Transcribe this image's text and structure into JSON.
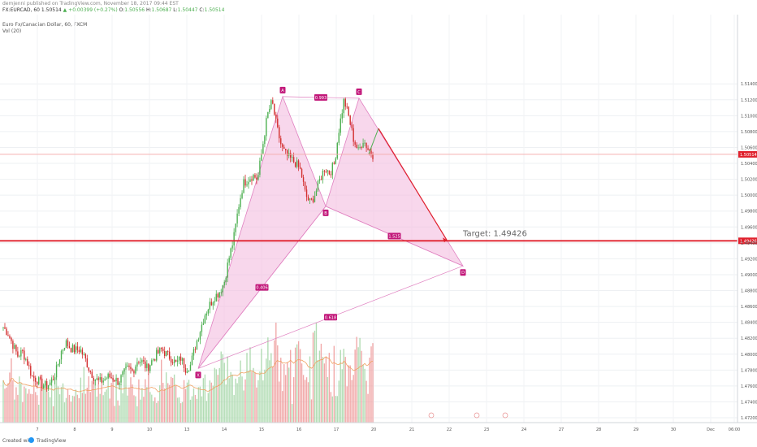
{
  "header": {
    "publisher_line": "demjenni published on TradingView.com, November 18, 2017 09:44 EST",
    "symbol": "FX:EURCAD, 60",
    "last": "1.50514",
    "change": "▲ +0.00399 (+0.27%)",
    "o_label": "O:",
    "o_val": "1.50556",
    "h_label": "H:",
    "h_val": "1.50687",
    "l_label": "L:",
    "l_val": "1.50447",
    "c_label": "C:",
    "c_val": "1.50514",
    "instrument_title": "Euro Fx/Canadian Dollar, 60, FXCM",
    "volume_title": "Vol (20)"
  },
  "footer": {
    "created_with": "Created with",
    "brand": "TradingView"
  },
  "colors": {
    "up": "#4caf50",
    "down": "#d32f2f",
    "pattern_fill": "#f3bde0",
    "pattern_stroke": "#e080c0",
    "label_bg": "#c2187a",
    "target_line": "#e0202c",
    "last_price_line": "#f5b0b0",
    "vol_up": "#a5d6a7",
    "vol_down": "#ef9a9a",
    "vol_ma": "#f0a060",
    "projection": "#e0202c",
    "projection_leg": "#4caf50"
  },
  "chart_data": {
    "type": "candlestick",
    "symbol": "FX:EURCAD",
    "interval": "60",
    "y_axis": {
      "range": [
        1.471,
        1.5155
      ],
      "ticks": [
        "1.51400",
        "1.51200",
        "1.51000",
        "1.50800",
        "1.50600",
        "1.50400",
        "1.50200",
        "1.50000",
        "1.49800",
        "1.49600",
        "1.49400",
        "1.49200",
        "1.49000",
        "1.48800",
        "1.48600",
        "1.48400",
        "1.48200",
        "1.48000",
        "1.47800",
        "1.47600",
        "1.47400",
        "1.47200"
      ]
    },
    "x_axis": {
      "tick_labels": [
        "7",
        "8",
        "9",
        "10",
        "13",
        "14",
        "15",
        "16",
        "17",
        "20",
        "21",
        "22",
        "23",
        "24",
        "27",
        "28",
        "29",
        "30",
        "Dec",
        "06:00"
      ]
    },
    "price_labels": {
      "last": "1.50514",
      "target": "1.49426"
    },
    "target_label": "Target: 1.49426",
    "harmonic_pattern": {
      "points": [
        {
          "name": "X",
          "price": 1.4782
        },
        {
          "name": "A",
          "price": 1.5124
        },
        {
          "name": "B",
          "price": 1.4986
        },
        {
          "name": "C",
          "price": 1.5122
        },
        {
          "name": "D",
          "price": 1.4911
        }
      ],
      "ratios": [
        {
          "label": "0.993",
          "from": "A",
          "to": "C"
        },
        {
          "label": "1.525",
          "from": "B",
          "to": "D"
        },
        {
          "label": "0.406",
          "from": "X",
          "to": "B"
        },
        {
          "label": "0.618",
          "from": "X",
          "to": "D"
        }
      ]
    },
    "ohlc_path": [
      1.4834,
      1.4826,
      1.4812,
      1.4798,
      1.4803,
      1.479,
      1.4772,
      1.4768,
      1.4762,
      1.476,
      1.4765,
      1.4778,
      1.4802,
      1.4815,
      1.4808,
      1.4805,
      1.4806,
      1.4795,
      1.478,
      1.477,
      1.4765,
      1.4768,
      1.4772,
      1.477,
      1.4765,
      1.4775,
      1.4782,
      1.4778,
      1.4793,
      1.479,
      1.4782,
      1.4792,
      1.48,
      1.4806,
      1.48,
      1.4795,
      1.4788,
      1.4795,
      1.4782,
      1.4786,
      1.481,
      1.483,
      1.485,
      1.4862,
      1.4872,
      1.4878,
      1.489,
      1.492,
      1.4945,
      1.4985,
      1.5015,
      1.502,
      1.5025,
      1.502,
      1.506,
      1.51,
      1.5118,
      1.5085,
      1.506,
      1.505,
      1.5045,
      1.504,
      1.503,
      1.5,
      1.499,
      1.5002,
      1.502,
      1.5035,
      1.5028,
      1.504,
      1.5085,
      1.512,
      1.5098,
      1.507,
      1.5055,
      1.507,
      1.5058,
      1.5051
    ],
    "volume_ma": "visible"
  }
}
